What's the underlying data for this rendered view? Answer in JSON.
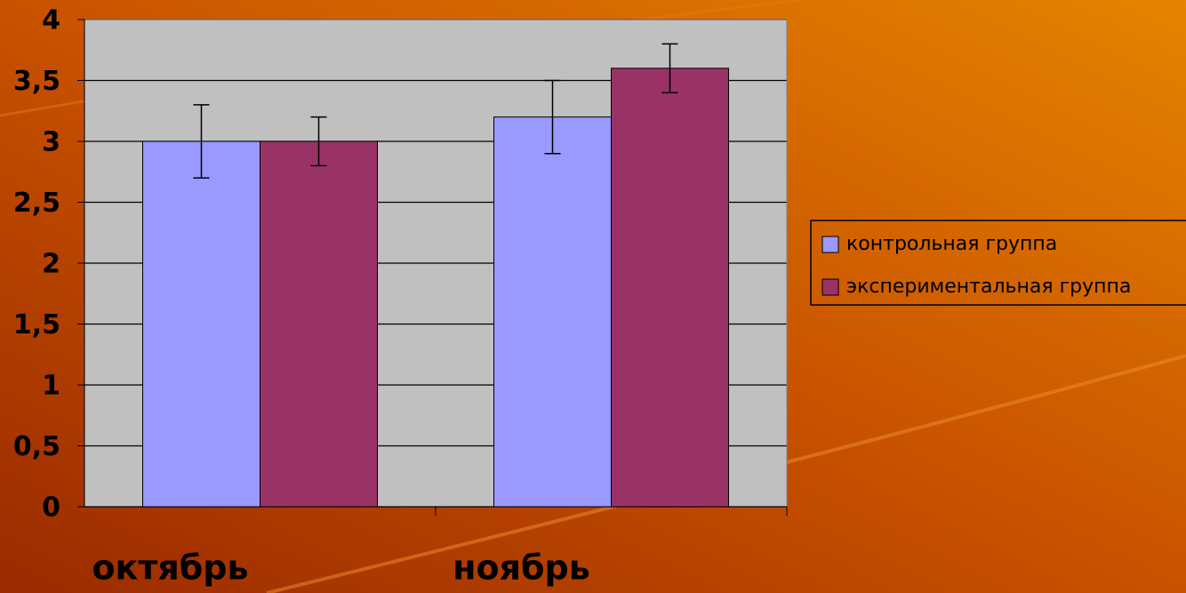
{
  "chart_data": {
    "type": "bar",
    "categories": [
      "октябрь",
      "ноябрь"
    ],
    "series": [
      {
        "name": "контрольная группа",
        "color": "#9999ff",
        "values": [
          3,
          3.2
        ],
        "errors": [
          0.3,
          0.3
        ]
      },
      {
        "name": "экспериментальная группа",
        "color": "#993366",
        "values": [
          3,
          3.6
        ],
        "errors": [
          0.2,
          0.2
        ]
      }
    ],
    "ylim": [
      0,
      4
    ],
    "yticks": [
      0,
      {
        "value": 0.5,
        "label": "0,5"
      },
      1,
      {
        "value": 1.5,
        "label": "1,5"
      },
      2,
      {
        "value": 2.5,
        "label": "2,5"
      },
      3,
      {
        "value": 3.5,
        "label": "3,5"
      },
      4
    ],
    "grid": true,
    "legend": "right"
  }
}
